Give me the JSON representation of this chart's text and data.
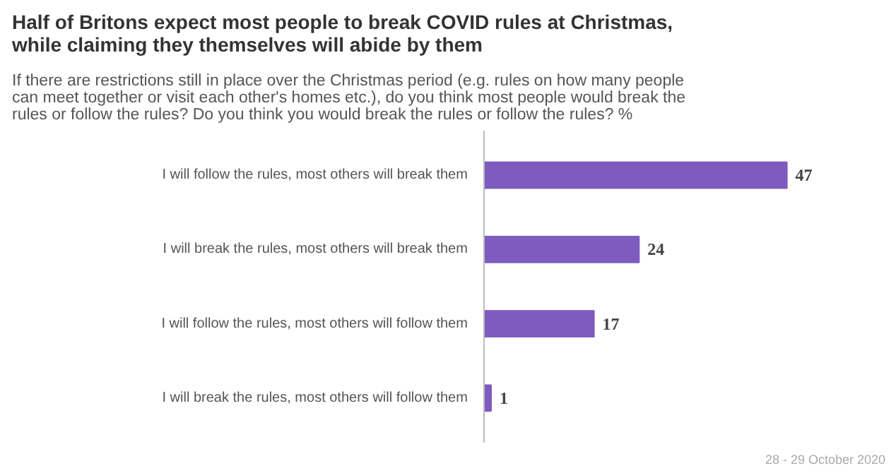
{
  "chart_data": {
    "type": "bar",
    "orientation": "horizontal",
    "title": "Half of Britons expect most people to break COVID rules at Christmas,\nwhile claiming they themselves will abide by them",
    "subtitle": "If there are restrictions still in place over the Christmas period (e.g. rules on how many people\ncan meet together or visit each other's homes etc.), do you think most people would break the\nrules or follow the rules? Do you think you would break the rules or follow the rules? %",
    "categories": [
      "I will follow the rules, most others will break them",
      "I will break the rules, most others will break them",
      "I will follow the rules, most others will follow them",
      "I will break the rules, most others will follow them"
    ],
    "values": [
      47,
      24,
      17,
      1
    ],
    "color": "#7e5bbf",
    "data_labels": true,
    "grid": false,
    "annotations": [
      "28 - 29 October 2020"
    ]
  }
}
